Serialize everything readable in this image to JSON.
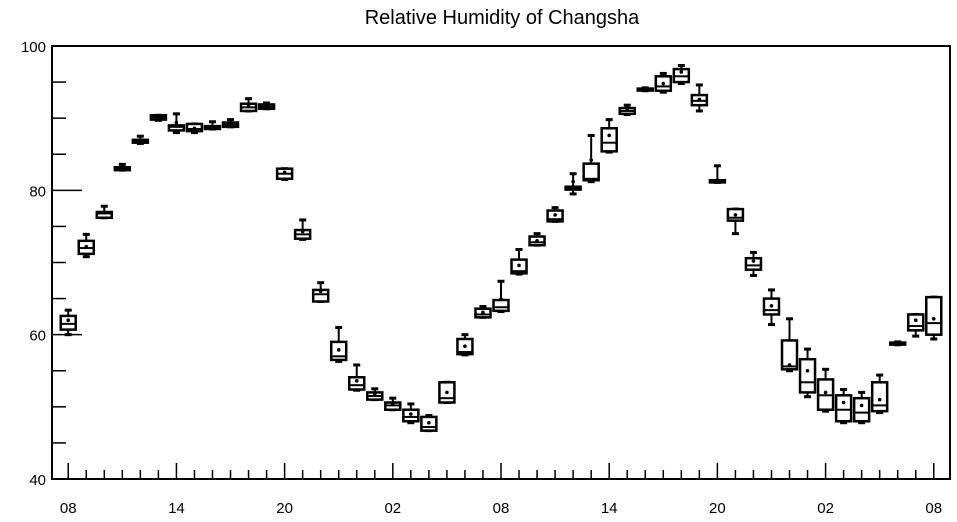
{
  "chart_data": {
    "type": "boxplot",
    "title": "Relative Humidity of Changsha",
    "xlabel": "",
    "ylabel": "",
    "ylim": [
      40,
      100
    ],
    "y_major_ticks": [
      40,
      60,
      80,
      100
    ],
    "y_minor_step": 5,
    "x_tick_labels": [
      "08",
      "14",
      "20",
      "02",
      "08",
      "14",
      "20",
      "02",
      "08"
    ],
    "x_tick_hours": [
      0,
      6,
      12,
      18,
      24,
      30,
      36,
      42,
      48
    ],
    "x_range_hours": [
      -0.9,
      48.9
    ],
    "grid": false,
    "boxes": [
      {
        "hour": 0,
        "whisker_low": 60.0,
        "q1": 60.7,
        "median": 61.5,
        "q3": 62.6,
        "whisker_high": 63.4,
        "mean": 62.0
      },
      {
        "hour": 1,
        "whisker_low": 70.8,
        "q1": 71.2,
        "median": 72.0,
        "q3": 73.0,
        "whisker_high": 73.9,
        "mean": 72.2
      },
      {
        "hour": 2,
        "whisker_low": 76.2,
        "q1": 76.2,
        "median": 76.8,
        "q3": 77.0,
        "whisker_high": 77.8,
        "mean": 76.9
      },
      {
        "hour": 3,
        "whisker_low": 82.8,
        "q1": 82.8,
        "median": 83.0,
        "q3": 83.2,
        "whisker_high": 83.6,
        "mean": 83.0
      },
      {
        "hour": 4,
        "whisker_low": 86.5,
        "q1": 86.6,
        "median": 86.8,
        "q3": 87.0,
        "whisker_high": 87.5,
        "mean": 86.9
      },
      {
        "hour": 5,
        "whisker_low": 89.7,
        "q1": 89.8,
        "median": 90.1,
        "q3": 90.4,
        "whisker_high": 90.4,
        "mean": 90.1
      },
      {
        "hour": 6,
        "whisker_low": 88.0,
        "q1": 88.3,
        "median": 88.8,
        "q3": 89.0,
        "whisker_high": 90.6,
        "mean": 89.4
      },
      {
        "hour": 7,
        "whisker_low": 88.0,
        "q1": 88.2,
        "median": 88.5,
        "q3": 89.2,
        "whisker_high": 89.2,
        "mean": 88.6
      },
      {
        "hour": 8,
        "whisker_low": 88.5,
        "q1": 88.5,
        "median": 88.7,
        "q3": 88.9,
        "whisker_high": 89.5,
        "mean": 88.8
      },
      {
        "hour": 9,
        "whisker_low": 88.8,
        "q1": 88.8,
        "median": 89.1,
        "q3": 89.4,
        "whisker_high": 89.8,
        "mean": 89.2
      },
      {
        "hour": 10,
        "whisker_low": 91.0,
        "q1": 91.0,
        "median": 91.5,
        "q3": 92.0,
        "whisker_high": 92.7,
        "mean": 91.8
      },
      {
        "hour": 11,
        "whisker_low": 91.3,
        "q1": 91.3,
        "median": 91.6,
        "q3": 91.9,
        "whisker_high": 92.1,
        "mean": 91.7
      },
      {
        "hour": 12,
        "whisker_low": 81.5,
        "q1": 81.6,
        "median": 82.3,
        "q3": 83.0,
        "whisker_high": 83.0,
        "mean": 82.5
      },
      {
        "hour": 13,
        "whisker_low": 73.2,
        "q1": 73.3,
        "median": 73.9,
        "q3": 74.5,
        "whisker_high": 75.9,
        "mean": 74.3
      },
      {
        "hour": 14,
        "whisker_low": 64.6,
        "q1": 64.6,
        "median": 65.6,
        "q3": 66.2,
        "whisker_high": 67.2,
        "mean": 66.0
      },
      {
        "hour": 15,
        "whisker_low": 56.3,
        "q1": 56.5,
        "median": 57.0,
        "q3": 59.0,
        "whisker_high": 61.0,
        "mean": 57.9
      },
      {
        "hour": 16,
        "whisker_low": 52.3,
        "q1": 52.4,
        "median": 53.0,
        "q3": 54.1,
        "whisker_high": 55.8,
        "mean": 53.6
      },
      {
        "hour": 17,
        "whisker_low": 51.0,
        "q1": 51.0,
        "median": 51.5,
        "q3": 52.0,
        "whisker_high": 52.5,
        "mean": 51.8
      },
      {
        "hour": 18,
        "whisker_low": 49.6,
        "q1": 49.6,
        "median": 50.2,
        "q3": 50.6,
        "whisker_high": 51.2,
        "mean": 50.4
      },
      {
        "hour": 19,
        "whisker_low": 47.8,
        "q1": 48.0,
        "median": 48.6,
        "q3": 49.6,
        "whisker_high": 50.4,
        "mean": 49.0
      },
      {
        "hour": 20,
        "whisker_low": 46.7,
        "q1": 46.7,
        "median": 47.2,
        "q3": 48.6,
        "whisker_high": 48.8,
        "mean": 47.8
      },
      {
        "hour": 21,
        "whisker_low": 50.6,
        "q1": 50.6,
        "median": 51.2,
        "q3": 53.4,
        "whisker_high": 53.4,
        "mean": 52.0
      },
      {
        "hour": 22,
        "whisker_low": 57.2,
        "q1": 57.3,
        "median": 57.6,
        "q3": 59.4,
        "whisker_high": 60.0,
        "mean": 58.4
      },
      {
        "hour": 23,
        "whisker_low": 62.4,
        "q1": 62.4,
        "median": 62.8,
        "q3": 63.6,
        "whisker_high": 63.9,
        "mean": 63.1
      },
      {
        "hour": 24,
        "whisker_low": 63.2,
        "q1": 63.3,
        "median": 63.8,
        "q3": 64.8,
        "whisker_high": 67.4,
        "mean": 64.9
      },
      {
        "hour": 25,
        "whisker_low": 68.4,
        "q1": 68.5,
        "median": 68.8,
        "q3": 70.4,
        "whisker_high": 71.8,
        "mean": 69.6
      },
      {
        "hour": 26,
        "whisker_low": 72.4,
        "q1": 72.4,
        "median": 72.8,
        "q3": 73.6,
        "whisker_high": 74.0,
        "mean": 73.0
      },
      {
        "hour": 27,
        "whisker_low": 75.7,
        "q1": 75.7,
        "median": 76.0,
        "q3": 77.2,
        "whisker_high": 77.6,
        "mean": 76.6
      },
      {
        "hour": 28,
        "whisker_low": 79.5,
        "q1": 80.1,
        "median": 80.3,
        "q3": 80.5,
        "whisker_high": 82.3,
        "mean": 81.2
      },
      {
        "hour": 29,
        "whisker_low": 81.2,
        "q1": 81.4,
        "median": 81.6,
        "q3": 83.7,
        "whisker_high": 87.6,
        "mean": 84.2
      },
      {
        "hour": 30,
        "whisker_low": 85.3,
        "q1": 85.4,
        "median": 86.6,
        "q3": 88.6,
        "whisker_high": 89.8,
        "mean": 87.6
      },
      {
        "hour": 31,
        "whisker_low": 90.5,
        "q1": 90.6,
        "median": 91.0,
        "q3": 91.4,
        "whisker_high": 91.8,
        "mean": 91.2
      },
      {
        "hour": 32,
        "whisker_low": 93.8,
        "q1": 93.9,
        "median": 94.0,
        "q3": 94.1,
        "whisker_high": 94.2,
        "mean": 94.0
      },
      {
        "hour": 33,
        "whisker_low": 93.6,
        "q1": 93.8,
        "median": 94.4,
        "q3": 95.8,
        "whisker_high": 96.2,
        "mean": 94.8
      },
      {
        "hour": 34,
        "whisker_low": 94.8,
        "q1": 95.0,
        "median": 95.8,
        "q3": 96.8,
        "whisker_high": 97.3,
        "mean": 96.4
      },
      {
        "hour": 35,
        "whisker_low": 91.0,
        "q1": 91.8,
        "median": 92.4,
        "q3": 93.2,
        "whisker_high": 94.6,
        "mean": 92.6
      },
      {
        "hour": 36,
        "whisker_low": 81.1,
        "q1": 81.1,
        "median": 81.2,
        "q3": 81.4,
        "whisker_high": 83.4,
        "mean": 81.4
      },
      {
        "hour": 37,
        "whisker_low": 74.0,
        "q1": 75.8,
        "median": 76.2,
        "q3": 77.4,
        "whisker_high": 77.4,
        "mean": 76.6
      },
      {
        "hour": 38,
        "whisker_low": 68.2,
        "q1": 69.0,
        "median": 69.6,
        "q3": 70.6,
        "whisker_high": 71.4,
        "mean": 70.2
      },
      {
        "hour": 39,
        "whisker_low": 61.4,
        "q1": 62.8,
        "median": 63.4,
        "q3": 65.0,
        "whisker_high": 66.2,
        "mean": 64.0
      },
      {
        "hour": 40,
        "whisker_low": 55.0,
        "q1": 55.2,
        "median": 55.6,
        "q3": 59.2,
        "whisker_high": 62.2,
        "mean": 55.8
      },
      {
        "hour": 41,
        "whisker_low": 51.4,
        "q1": 52.0,
        "median": 53.4,
        "q3": 56.6,
        "whisker_high": 58.0,
        "mean": 55.0
      },
      {
        "hour": 42,
        "whisker_low": 49.4,
        "q1": 49.6,
        "median": 51.6,
        "q3": 53.8,
        "whisker_high": 55.2,
        "mean": 52.0
      },
      {
        "hour": 43,
        "whisker_low": 47.8,
        "q1": 48.0,
        "median": 49.6,
        "q3": 51.6,
        "whisker_high": 52.4,
        "mean": 50.6
      },
      {
        "hour": 44,
        "whisker_low": 47.8,
        "q1": 48.0,
        "median": 49.2,
        "q3": 51.2,
        "whisker_high": 52.0,
        "mean": 50.2
      },
      {
        "hour": 45,
        "whisker_low": 49.2,
        "q1": 49.4,
        "median": 50.2,
        "q3": 53.4,
        "whisker_high": 54.4,
        "mean": 51.0
      },
      {
        "hour": 46,
        "whisker_low": 58.6,
        "q1": 58.7,
        "median": 58.8,
        "q3": 58.9,
        "whisker_high": 59.0,
        "mean": 58.8
      },
      {
        "hour": 47,
        "whisker_low": 59.8,
        "q1": 60.6,
        "median": 61.2,
        "q3": 62.8,
        "whisker_high": 62.8,
        "mean": 62.0
      },
      {
        "hour": 48,
        "whisker_low": 59.4,
        "q1": 60.0,
        "median": 61.6,
        "q3": 65.2,
        "whisker_high": 65.2,
        "mean": 62.2
      }
    ]
  }
}
